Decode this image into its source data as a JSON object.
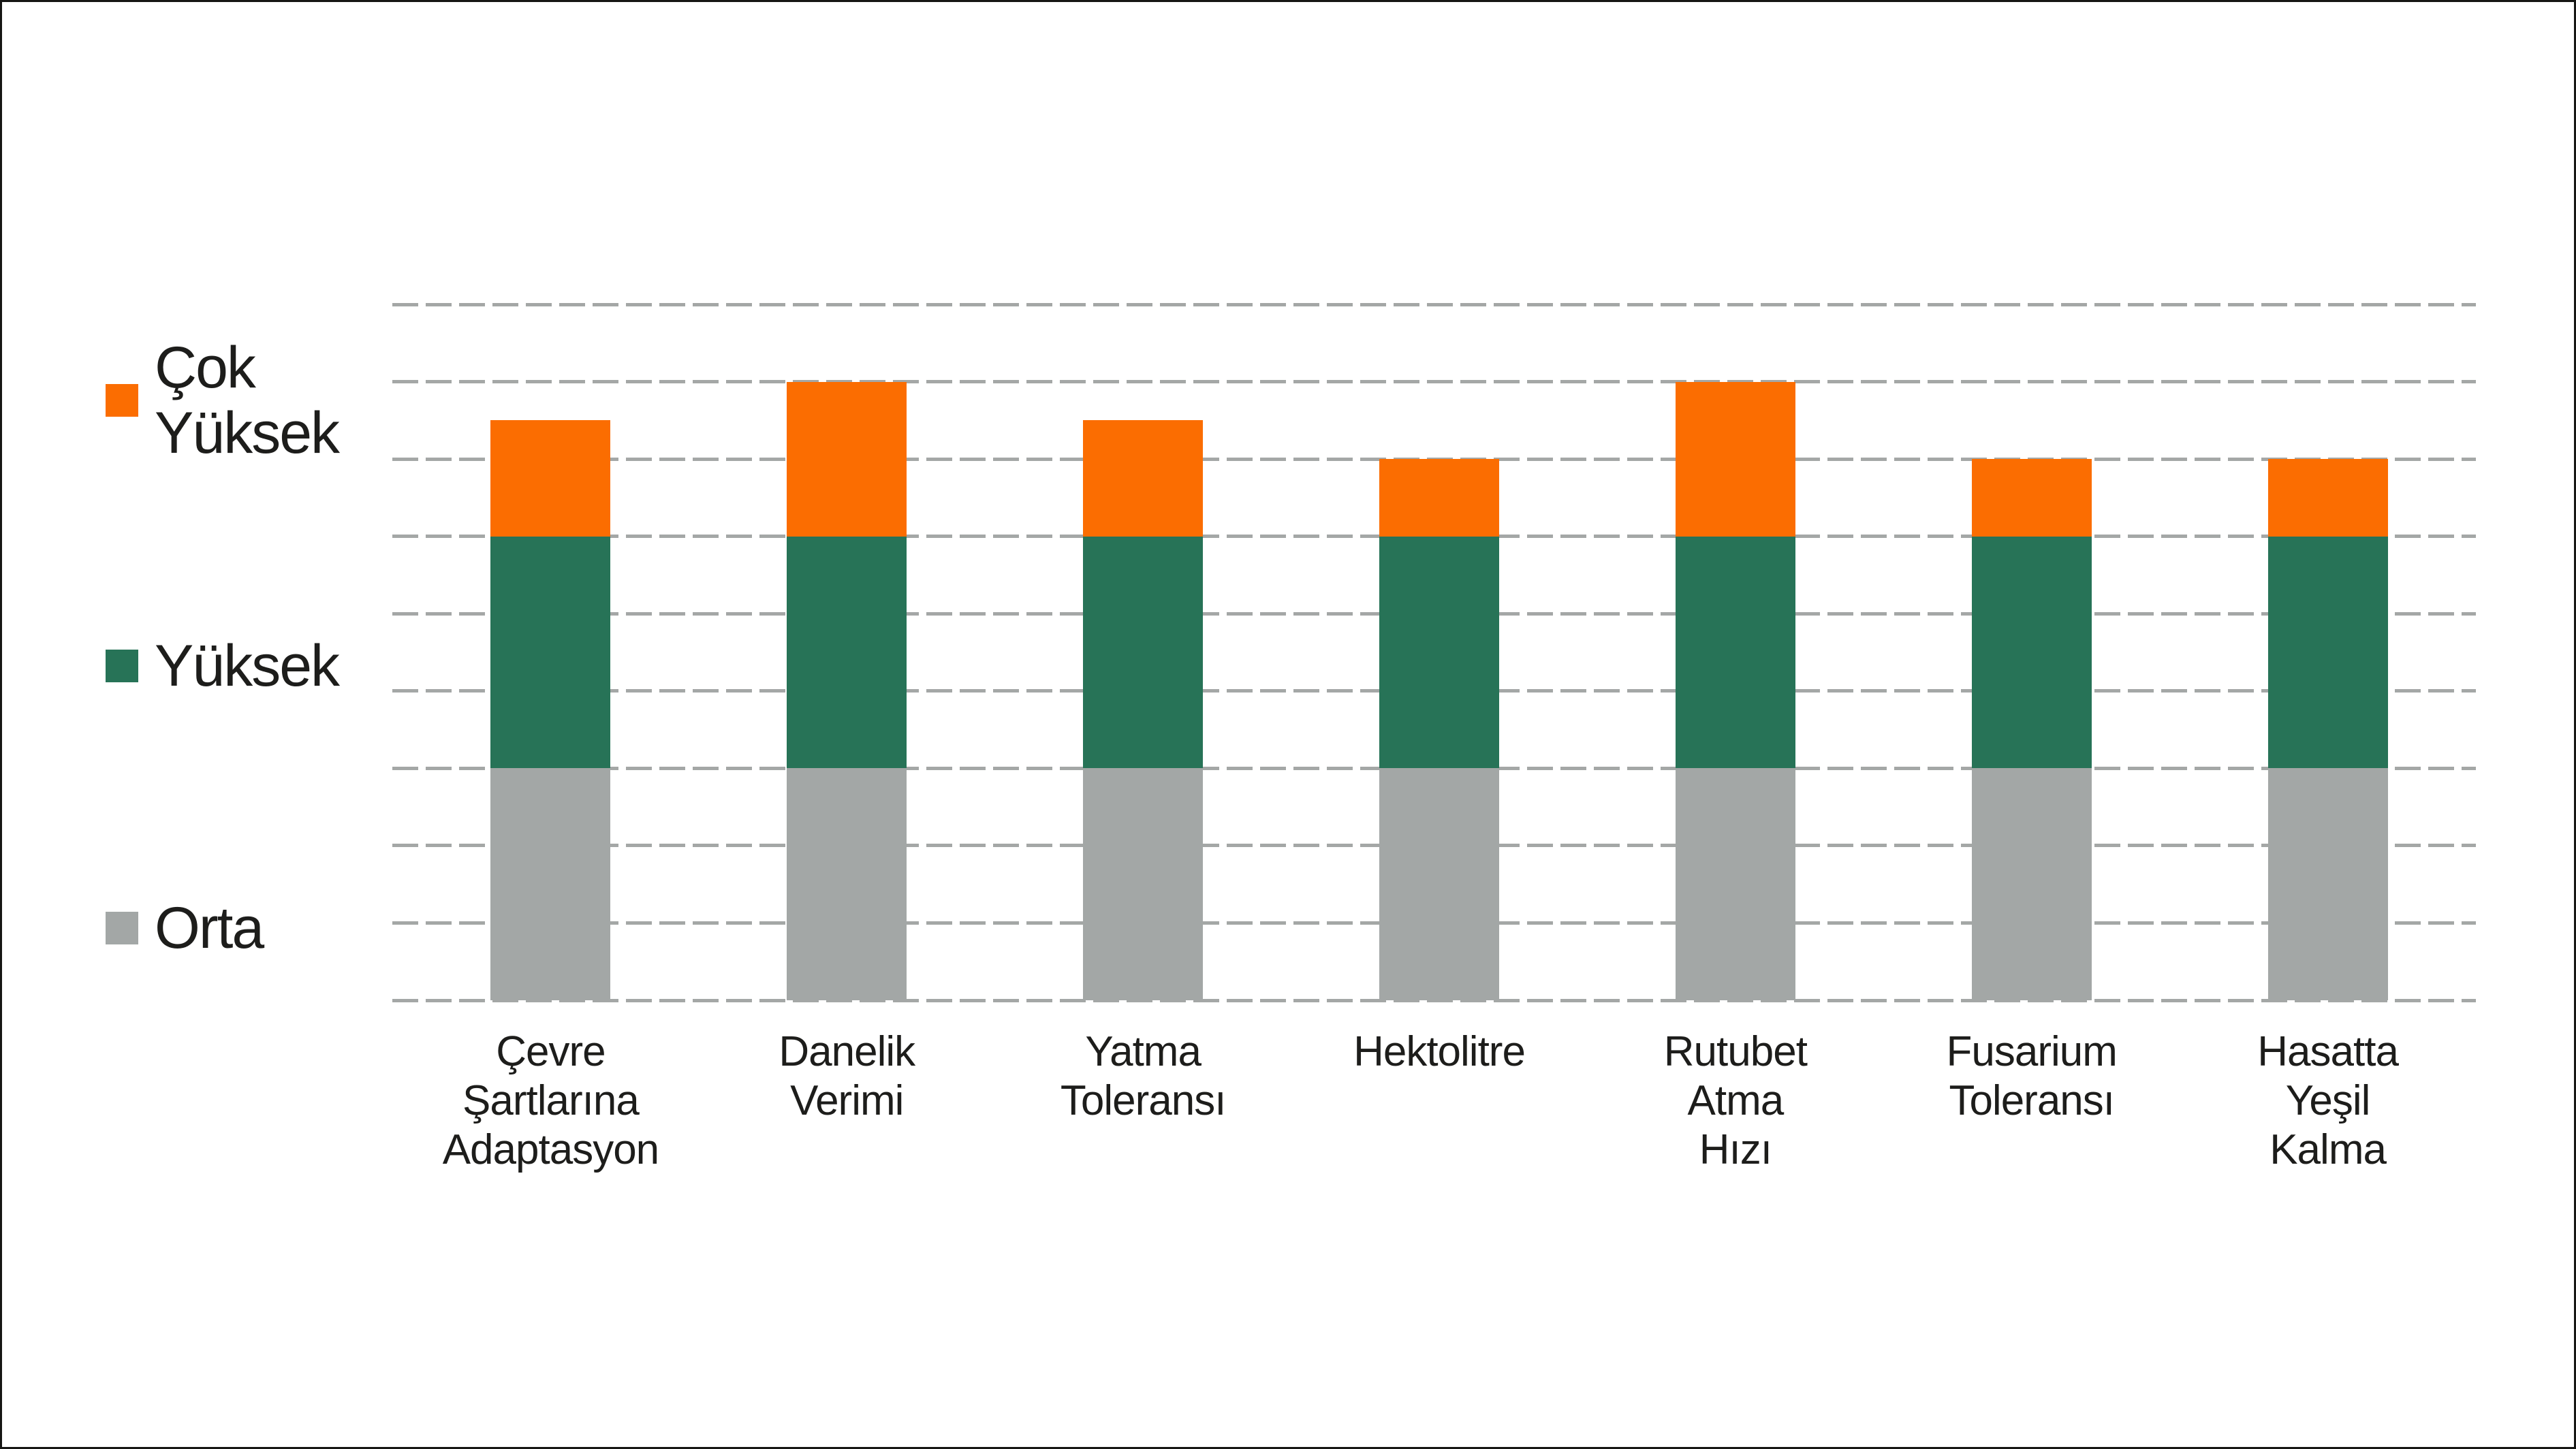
{
  "canvas": {
    "background": "#ffffff",
    "frame_color": "#161614",
    "text_color": "#1d1d1b"
  },
  "legend": {
    "position": "left",
    "items": [
      {
        "label": "Çok\nYüksek",
        "color": "#fb6d01"
      },
      {
        "label": "Yüksek",
        "color": "#277357"
      },
      {
        "label": "Orta",
        "color": "#a3a7a6"
      }
    ]
  },
  "chart_data": {
    "type": "bar",
    "stacked": true,
    "title": "",
    "xlabel": "",
    "ylabel": "",
    "ylim": [
      0,
      9
    ],
    "gridlines": {
      "count": 10,
      "style": "dashed",
      "color": "#a4a7a6"
    },
    "legend_position": "left",
    "categories": [
      "Çevre\nŞartlarına\nAdaptasyon",
      "Danelik\nVerimi",
      "Yatma\nToleransı",
      "Hektolitre",
      "Rutubet\nAtma\nHızı",
      "Fusarium\nToleransı",
      "Hasatta\nYeşil\nKalma"
    ],
    "series": [
      {
        "name": "Orta",
        "color": "#a3a7a6",
        "values": [
          3,
          3,
          3,
          3,
          3,
          3,
          3
        ]
      },
      {
        "name": "Yüksek",
        "color": "#277357",
        "values": [
          3,
          3,
          3,
          3,
          3,
          3,
          3
        ]
      },
      {
        "name": "Çok Yüksek",
        "color": "#fb6d01",
        "values": [
          1.5,
          2,
          1.5,
          1,
          2,
          1,
          1
        ]
      }
    ],
    "totals": [
      7.5,
      8,
      7.5,
      7,
      8,
      7,
      7
    ]
  }
}
